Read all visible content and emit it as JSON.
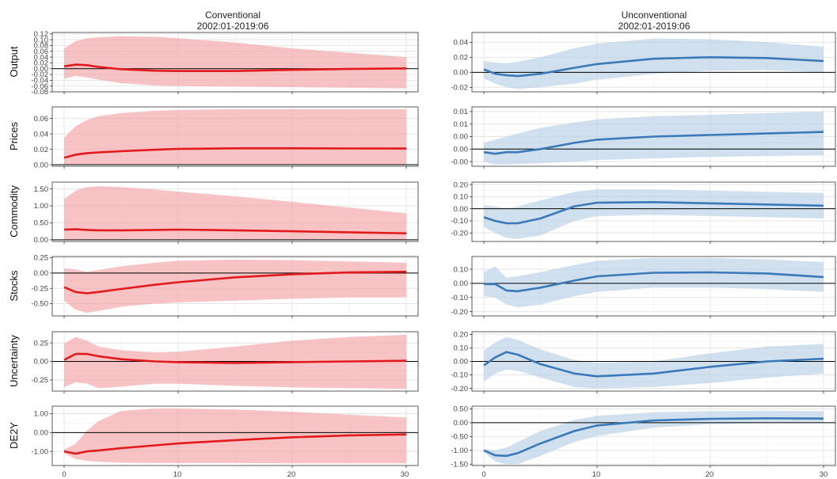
{
  "columns": [
    {
      "title_line1": "Conventional",
      "title_line2": "2002:01-2019:06",
      "color": "#e31a1c",
      "band_color": "#f4a3a6"
    },
    {
      "title_line1": "Unconventional",
      "title_line2": "2002:01-2019:06",
      "color": "#3a7ab8",
      "band_color": "#b7cfe6"
    }
  ],
  "row_labels": [
    "Output",
    "Prices",
    "Commodity",
    "Stocks",
    "Uncertainty",
    "DE2Y"
  ],
  "x_ticks": [
    "0",
    "10",
    "20",
    "30"
  ],
  "chart_data": [
    {
      "type": "line",
      "panel": "Conventional / Output",
      "ylabel": "Output",
      "xlim": [
        0,
        30
      ],
      "ylim": [
        -0.08,
        0.125
      ],
      "yticks": [
        -0.08,
        -0.06,
        -0.04,
        -0.02,
        0.0,
        0.02,
        0.04,
        0.06,
        0.08,
        0.1,
        0.12
      ],
      "ytick_labels": [
        "-0.08",
        "-0.06",
        "-0.04",
        "-0.02",
        "0.00",
        "0.02",
        "0.04",
        "0.06",
        "0.08",
        "0.10",
        "0.12"
      ],
      "x": [
        0,
        1,
        2,
        3,
        5,
        8,
        10,
        15,
        20,
        25,
        30
      ],
      "median": [
        0.008,
        0.014,
        0.012,
        0.006,
        -0.002,
        -0.007,
        -0.008,
        -0.008,
        -0.004,
        -0.001,
        0.001
      ],
      "lower": [
        -0.035,
        -0.025,
        -0.03,
        -0.038,
        -0.05,
        -0.058,
        -0.06,
        -0.062,
        -0.064,
        -0.066,
        -0.068
      ],
      "upper": [
        0.07,
        0.095,
        0.105,
        0.108,
        0.112,
        0.11,
        0.105,
        0.09,
        0.07,
        0.055,
        0.04
      ]
    },
    {
      "type": "line",
      "panel": "Conventional / Prices",
      "ylabel": "Prices",
      "xlim": [
        0,
        30
      ],
      "ylim": [
        -0.002,
        0.075
      ],
      "yticks": [
        0.0,
        0.02,
        0.04,
        0.06
      ],
      "ytick_labels": [
        "0.00",
        "0.02",
        "0.04",
        "0.06"
      ],
      "x": [
        0,
        1,
        2,
        3,
        5,
        8,
        10,
        15,
        20,
        25,
        30
      ],
      "median": [
        0.009,
        0.013,
        0.015,
        0.016,
        0.0175,
        0.0195,
        0.0205,
        0.0213,
        0.0213,
        0.0211,
        0.021
      ],
      "lower": [
        0.0,
        0.0,
        0.0,
        0.0,
        0.0,
        0.0,
        0.0,
        0.0,
        0.0,
        0.0,
        0.0
      ],
      "upper": [
        0.035,
        0.05,
        0.058,
        0.063,
        0.067,
        0.07,
        0.071,
        0.072,
        0.072,
        0.072,
        0.072
      ]
    },
    {
      "type": "line",
      "panel": "Conventional / Commodity",
      "ylabel": "Commodity",
      "xlim": [
        0,
        30
      ],
      "ylim": [
        -0.05,
        1.7
      ],
      "yticks": [
        0.0,
        0.5,
        1.0,
        1.5
      ],
      "ytick_labels": [
        "0.00",
        "0.50",
        "1.00",
        "1.50"
      ],
      "x": [
        0,
        1,
        2,
        3,
        5,
        8,
        10,
        15,
        20,
        25,
        30
      ],
      "median": [
        0.3,
        0.31,
        0.29,
        0.28,
        0.28,
        0.29,
        0.3,
        0.28,
        0.25,
        0.22,
        0.19
      ],
      "lower": [
        0.0,
        0.0,
        0.0,
        0.0,
        0.0,
        0.0,
        0.0,
        0.0,
        0.0,
        0.0,
        0.0
      ],
      "upper": [
        1.2,
        1.45,
        1.55,
        1.58,
        1.55,
        1.48,
        1.42,
        1.28,
        1.12,
        0.95,
        0.78
      ]
    },
    {
      "type": "line",
      "panel": "Conventional / Stocks",
      "ylabel": "Stocks",
      "xlim": [
        0,
        30
      ],
      "ylim": [
        -0.7,
        0.27
      ],
      "yticks": [
        -0.5,
        -0.25,
        0.0,
        0.25
      ],
      "ytick_labels": [
        "-0.50",
        "-0.25",
        "0.00",
        "0.25"
      ],
      "x": [
        0,
        1,
        2,
        3,
        5,
        8,
        10,
        15,
        20,
        25,
        30
      ],
      "median": [
        -0.23,
        -0.31,
        -0.33,
        -0.31,
        -0.26,
        -0.19,
        -0.15,
        -0.07,
        -0.02,
        0.01,
        0.02
      ],
      "lower": [
        -0.45,
        -0.6,
        -0.65,
        -0.62,
        -0.55,
        -0.5,
        -0.48,
        -0.45,
        -0.42,
        -0.4,
        -0.4
      ],
      "upper": [
        0.08,
        0.06,
        0.02,
        0.05,
        0.11,
        0.17,
        0.2,
        0.22,
        0.21,
        0.19,
        0.17
      ]
    },
    {
      "type": "line",
      "panel": "Conventional / Uncertainty",
      "ylabel": "Uncertainty",
      "xlim": [
        0,
        30
      ],
      "ylim": [
        -0.4,
        0.4
      ],
      "yticks": [
        -0.25,
        0.0,
        0.25
      ],
      "ytick_labels": [
        "-0.25",
        "0.00",
        "0.25"
      ],
      "x": [
        0,
        1,
        2,
        3,
        5,
        8,
        10,
        15,
        20,
        25,
        30
      ],
      "median": [
        0.02,
        0.1,
        0.1,
        0.07,
        0.03,
        0.0,
        -0.01,
        -0.02,
        -0.01,
        0.0,
        0.01
      ],
      "lower": [
        -0.35,
        -0.28,
        -0.3,
        -0.36,
        -0.34,
        -0.3,
        -0.3,
        -0.33,
        -0.35,
        -0.36,
        -0.37
      ],
      "upper": [
        0.24,
        0.33,
        0.28,
        0.2,
        0.15,
        0.12,
        0.13,
        0.2,
        0.28,
        0.33,
        0.36
      ]
    },
    {
      "type": "line",
      "panel": "Conventional / DE2Y",
      "ylabel": "DE2Y",
      "xlim": [
        0,
        30
      ],
      "ylim": [
        -1.75,
        1.4
      ],
      "yticks": [
        -1.0,
        0.0,
        1.0
      ],
      "ytick_labels": [
        "-1.00",
        "0.00",
        "1.00"
      ],
      "x": [
        0,
        1,
        2,
        3,
        5,
        8,
        10,
        15,
        20,
        25,
        30
      ],
      "median": [
        -1.0,
        -1.12,
        -1.0,
        -0.95,
        -0.83,
        -0.68,
        -0.58,
        -0.4,
        -0.25,
        -0.15,
        -0.1
      ],
      "lower": [
        -1.1,
        -1.4,
        -1.5,
        -1.55,
        -1.6,
        -1.62,
        -1.62,
        -1.62,
        -1.63,
        -1.63,
        -1.63
      ],
      "upper": [
        -0.9,
        -0.6,
        0.1,
        0.6,
        1.15,
        1.28,
        1.28,
        1.22,
        1.1,
        0.95,
        0.8
      ]
    },
    {
      "type": "line",
      "panel": "Unconventional / Output",
      "ylabel": "Output",
      "xlim": [
        0,
        30
      ],
      "ylim": [
        -0.026,
        0.053
      ],
      "yticks": [
        -0.02,
        0.0,
        0.02,
        0.04
      ],
      "ytick_labels": [
        "-0.02",
        "0.00",
        "0.02",
        "0.04"
      ],
      "x": [
        0,
        1,
        2,
        3,
        5,
        8,
        10,
        15,
        20,
        25,
        30
      ],
      "median": [
        0.004,
        -0.002,
        -0.004,
        -0.005,
        -0.002,
        0.006,
        0.011,
        0.018,
        0.02,
        0.019,
        0.015
      ],
      "lower": [
        -0.008,
        -0.015,
        -0.02,
        -0.022,
        -0.02,
        -0.015,
        -0.01,
        -0.002,
        0.002,
        0.003,
        0.0
      ],
      "upper": [
        0.015,
        0.013,
        0.012,
        0.014,
        0.02,
        0.032,
        0.038,
        0.045,
        0.044,
        0.04,
        0.034
      ]
    },
    {
      "type": "line",
      "panel": "Unconventional / Prices",
      "ylabel": "Prices",
      "xlim": [
        0,
        30
      ],
      "ylim": [
        -0.0055,
        0.0135
      ],
      "yticks": [
        -0.004,
        0.0,
        0.004,
        0.008,
        0.012
      ],
      "ytick_labels": [
        "-0.00",
        "0.00",
        "0.00",
        "0.01",
        "0.01"
      ],
      "x": [
        0,
        1,
        2,
        3,
        5,
        8,
        10,
        15,
        20,
        25,
        30
      ],
      "median": [
        -0.001,
        -0.0015,
        -0.001,
        -0.001,
        0.0,
        0.002,
        0.003,
        0.004,
        0.0045,
        0.005,
        0.0055
      ],
      "lower": [
        -0.004,
        -0.005,
        -0.005,
        -0.0048,
        -0.0045,
        -0.004,
        -0.0035,
        -0.003,
        -0.0025,
        -0.0022,
        -0.002
      ],
      "upper": [
        0.002,
        0.003,
        0.004,
        0.005,
        0.0068,
        0.0085,
        0.0095,
        0.0105,
        0.011,
        0.0115,
        0.012
      ]
    },
    {
      "type": "line",
      "panel": "Unconventional / Commodity",
      "ylabel": "Commodity",
      "xlim": [
        0,
        30
      ],
      "ylim": [
        -0.27,
        0.22
      ],
      "yticks": [
        -0.2,
        -0.1,
        0.0,
        0.1,
        0.2
      ],
      "ytick_labels": [
        "-0.20",
        "-0.10",
        "0.00",
        "0.10",
        "0.20"
      ],
      "x": [
        0,
        1,
        2,
        3,
        5,
        8,
        10,
        15,
        20,
        25,
        30
      ],
      "median": [
        -0.07,
        -0.1,
        -0.12,
        -0.12,
        -0.08,
        0.02,
        0.05,
        0.055,
        0.045,
        0.035,
        0.025
      ],
      "lower": [
        -0.15,
        -0.2,
        -0.24,
        -0.25,
        -0.22,
        -0.1,
        -0.06,
        -0.05,
        -0.06,
        -0.07,
        -0.08
      ],
      "upper": [
        0.03,
        0.02,
        0.0,
        0.02,
        0.07,
        0.14,
        0.16,
        0.16,
        0.15,
        0.14,
        0.13
      ]
    },
    {
      "type": "line",
      "panel": "Unconventional / Stocks",
      "ylabel": "Stocks",
      "xlim": [
        0,
        30
      ],
      "ylim": [
        -0.23,
        0.19
      ],
      "yticks": [
        -0.2,
        -0.1,
        0.0,
        0.1
      ],
      "ytick_labels": [
        "-0.20",
        "-0.10",
        "0.00",
        "0.10"
      ],
      "x": [
        0,
        1,
        2,
        3,
        5,
        8,
        10,
        15,
        20,
        25,
        30
      ],
      "median": [
        -0.005,
        -0.005,
        -0.05,
        -0.055,
        -0.03,
        0.02,
        0.05,
        0.075,
        0.078,
        0.07,
        0.045
      ],
      "lower": [
        -0.09,
        -0.1,
        -0.15,
        -0.17,
        -0.15,
        -0.09,
        -0.06,
        -0.03,
        -0.03,
        -0.04,
        -0.06
      ],
      "upper": [
        0.08,
        0.12,
        0.04,
        0.05,
        0.08,
        0.13,
        0.16,
        0.18,
        0.18,
        0.17,
        0.15
      ]
    },
    {
      "type": "line",
      "panel": "Unconventional / Uncertainty",
      "ylabel": "Uncertainty",
      "xlim": [
        0,
        30
      ],
      "ylim": [
        -0.22,
        0.22
      ],
      "yticks": [
        -0.2,
        -0.1,
        0.0,
        0.1,
        0.2
      ],
      "ytick_labels": [
        "-0.20",
        "-0.10",
        "0.00",
        "0.10",
        "0.20"
      ],
      "x": [
        0,
        1,
        2,
        3,
        5,
        8,
        10,
        15,
        20,
        25,
        30
      ],
      "median": [
        -0.03,
        0.03,
        0.07,
        0.05,
        -0.02,
        -0.09,
        -0.11,
        -0.09,
        -0.04,
        0.0,
        0.02
      ],
      "lower": [
        -0.15,
        -0.09,
        -0.06,
        -0.07,
        -0.12,
        -0.19,
        -0.2,
        -0.19,
        -0.16,
        -0.12,
        -0.09
      ],
      "upper": [
        0.08,
        0.14,
        0.18,
        0.16,
        0.09,
        0.01,
        -0.01,
        0.0,
        0.06,
        0.11,
        0.13
      ]
    },
    {
      "type": "line",
      "panel": "Unconventional / DE2Y",
      "ylabel": "DE2Y",
      "xlim": [
        0,
        30
      ],
      "ylim": [
        -1.55,
        0.6
      ],
      "yticks": [
        -1.5,
        -1.0,
        -0.5,
        0.0,
        0.5
      ],
      "ytick_labels": [
        "-1.50",
        "-1.00",
        "-0.50",
        "0.00",
        "0.50"
      ],
      "x": [
        0,
        1,
        2,
        3,
        5,
        8,
        10,
        15,
        20,
        25,
        30
      ],
      "median": [
        -1.0,
        -1.18,
        -1.2,
        -1.1,
        -0.75,
        -0.3,
        -0.1,
        0.08,
        0.14,
        0.16,
        0.15
      ],
      "lower": [
        -1.05,
        -1.4,
        -1.5,
        -1.5,
        -1.2,
        -0.7,
        -0.48,
        -0.18,
        -0.05,
        0.0,
        0.02
      ],
      "upper": [
        -0.95,
        -1.0,
        -0.9,
        -0.7,
        -0.3,
        0.1,
        0.25,
        0.38,
        0.42,
        0.43,
        0.42
      ]
    }
  ]
}
